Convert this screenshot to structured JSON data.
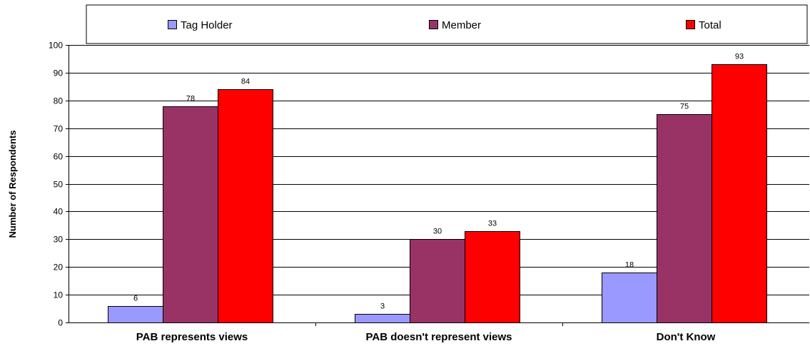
{
  "chart_data": {
    "type": "bar",
    "categories": [
      "PAB represents views",
      "PAB doesn't represent views",
      "Don't Know"
    ],
    "series": [
      {
        "name": "Tag Holder",
        "color": "#9999ff",
        "values": [
          6,
          3,
          18
        ]
      },
      {
        "name": "Member",
        "color": "#993366",
        "values": [
          78,
          30,
          75
        ]
      },
      {
        "name": "Total",
        "color": "#ff0000",
        "values": [
          84,
          33,
          93
        ]
      }
    ],
    "ylabel": "Number of Respondents",
    "ylim": [
      0,
      100
    ],
    "yticks": [
      0,
      10,
      20,
      30,
      40,
      50,
      60,
      70,
      80,
      90,
      100
    ],
    "grid": true,
    "legend_position": "top"
  }
}
